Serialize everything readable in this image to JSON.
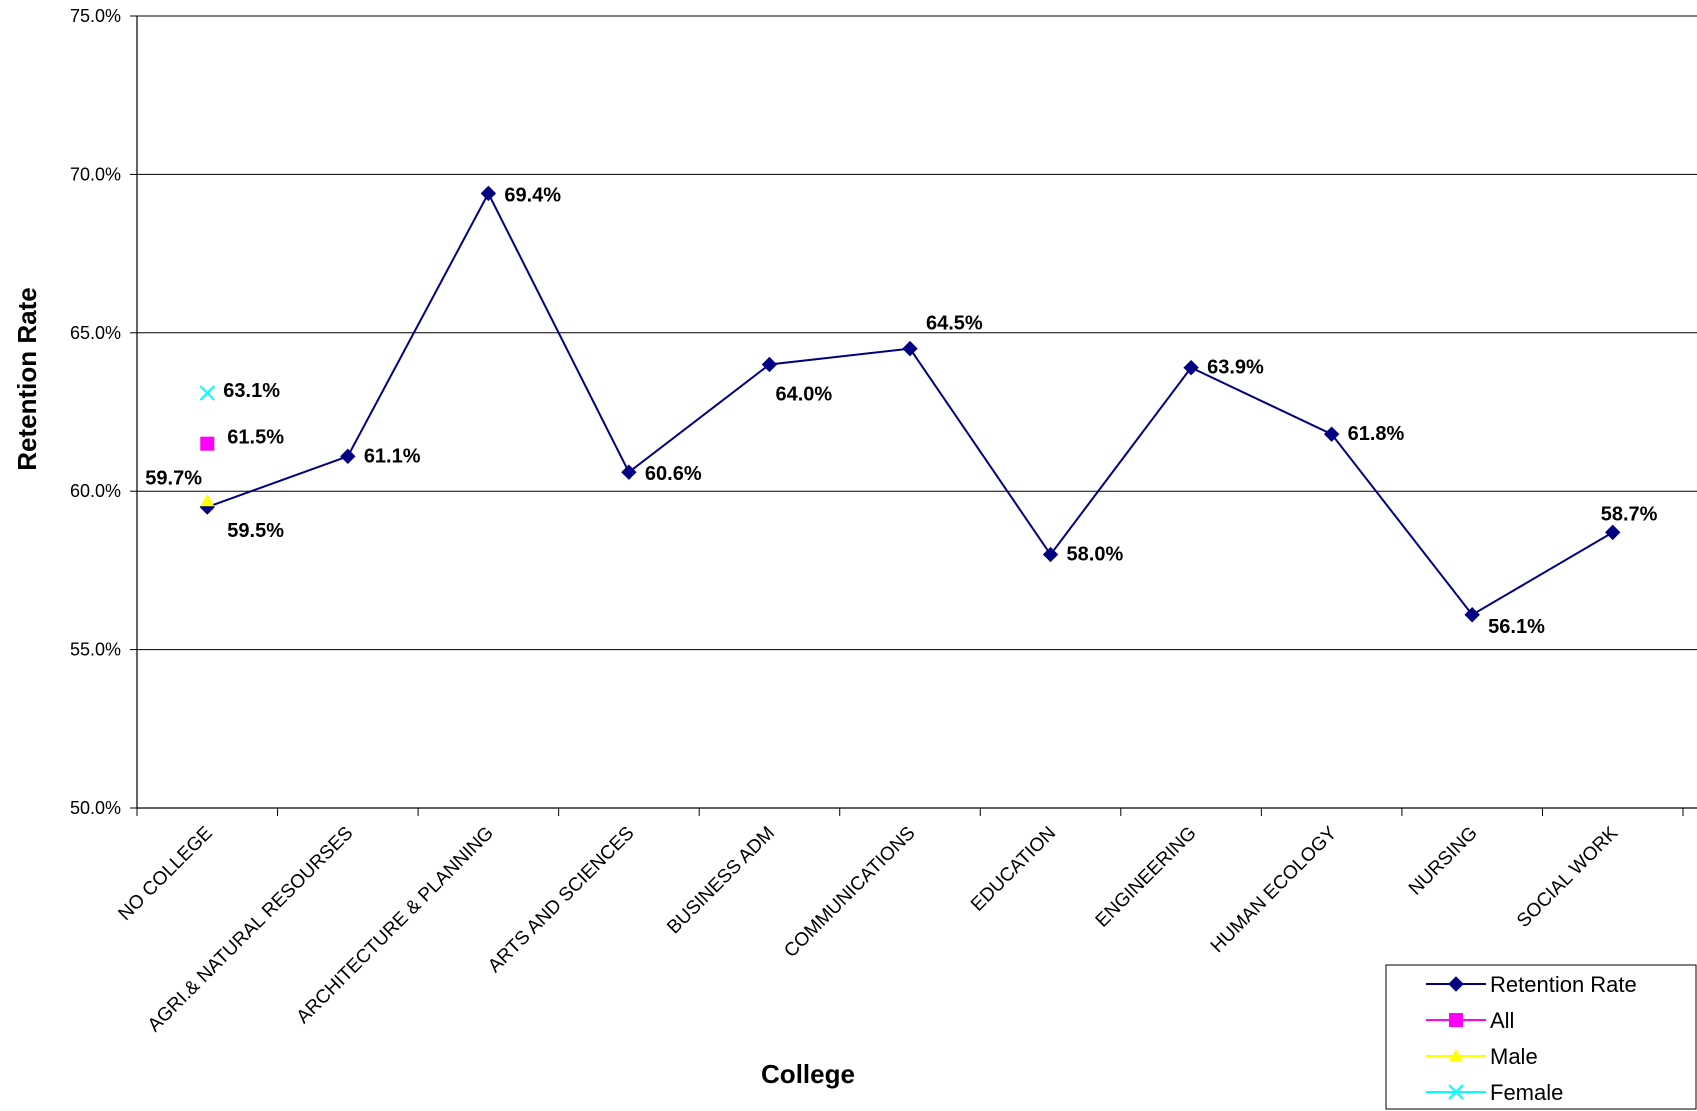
{
  "chart_data": {
    "type": "line",
    "xlabel": "College",
    "ylabel": "Retention Rate",
    "ylim": [
      0.5,
      0.75
    ],
    "y_ticks": [
      "50.0%",
      "55.0%",
      "60.0%",
      "65.0%",
      "70.0%",
      "75.0%"
    ],
    "grid": "horizontal",
    "legend_position": "bottom-right",
    "categories": [
      "NO COLLEGE",
      "AGRI.& NATURAL RESOURSES",
      "ARCHITECTURE & PLANNING",
      "ARTS AND SCIENCES",
      "BUSINESS ADM",
      "COMMUNICATIONS",
      "EDUCATION",
      "ENGINEERING",
      "HUMAN ECOLOGY",
      "NURSING",
      "SOCIAL WORK"
    ],
    "series": [
      {
        "name": "Retention Rate",
        "color": "#000080",
        "marker": "diamond",
        "values": [
          0.595,
          0.611,
          0.694,
          0.606,
          0.64,
          0.645,
          0.58,
          0.639,
          0.618,
          0.561,
          0.587
        ],
        "labels": [
          "59.5%",
          "61.1%",
          "69.4%",
          "60.6%",
          "64.0%",
          "64.5%",
          "58.0%",
          "63.9%",
          "61.8%",
          "56.1%",
          "58.7%"
        ]
      },
      {
        "name": "All",
        "color": "#FF00FF",
        "marker": "square",
        "values": [
          0.615,
          null,
          null,
          null,
          null,
          null,
          null,
          null,
          null,
          null,
          null
        ],
        "labels": [
          "61.5%"
        ]
      },
      {
        "name": "Male",
        "color": "#FFFF00",
        "marker": "triangle",
        "values": [
          0.597,
          null,
          null,
          null,
          null,
          null,
          null,
          null,
          null,
          null,
          null
        ],
        "labels": [
          "59.7%"
        ]
      },
      {
        "name": "Female",
        "color": "#00FFFF",
        "marker": "x",
        "values": [
          0.631,
          null,
          null,
          null,
          null,
          null,
          null,
          null,
          null,
          null,
          null
        ],
        "labels": [
          "63.1%"
        ]
      }
    ]
  }
}
